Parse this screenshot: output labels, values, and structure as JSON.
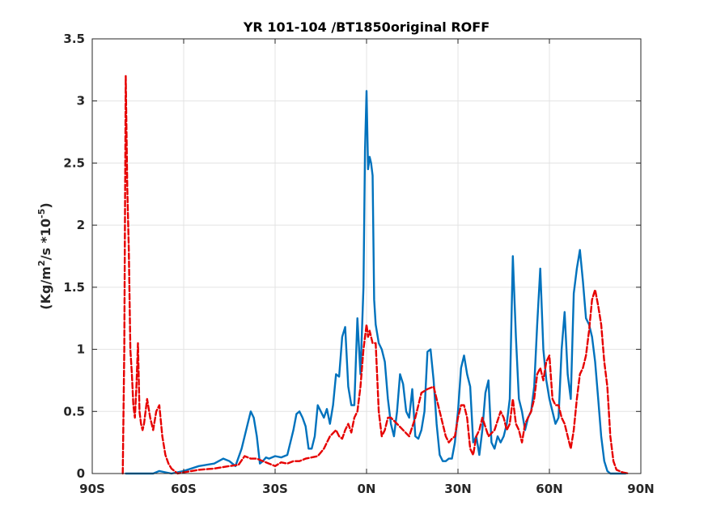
{
  "chart_data": {
    "type": "line",
    "title": "YR 101-104 /BT1850original ROFF",
    "xlabel": "",
    "ylabel_base": "(Kg/m",
    "ylabel_sup1": "2",
    "ylabel_mid": "/s   *10",
    "ylabel_sup2": "-5",
    "ylabel_end": ")",
    "xlim": [
      -90,
      90
    ],
    "ylim": [
      0,
      3.5
    ],
    "grid": true,
    "xticks": [
      {
        "value": -90,
        "label": "90S"
      },
      {
        "value": -60,
        "label": "60S"
      },
      {
        "value": -30,
        "label": "30S"
      },
      {
        "value": 0,
        "label": "0N"
      },
      {
        "value": 30,
        "label": "30N"
      },
      {
        "value": 60,
        "label": "60N"
      },
      {
        "value": 90,
        "label": "90N"
      }
    ],
    "yticks": [
      {
        "value": 0,
        "label": "0"
      },
      {
        "value": 0.5,
        "label": "0.5"
      },
      {
        "value": 1,
        "label": "1"
      },
      {
        "value": 1.5,
        "label": "1.5"
      },
      {
        "value": 2,
        "label": "2"
      },
      {
        "value": 2.5,
        "label": "2.5"
      },
      {
        "value": 3,
        "label": "3"
      },
      {
        "value": 3.5,
        "label": "3.5"
      }
    ],
    "series": [
      {
        "color": "#0072bd",
        "dash": "solid",
        "x": [
          -79,
          -70,
          -68,
          -66,
          -64,
          -60,
          -55,
          -50,
          -47,
          -45,
          -43,
          -41,
          -39,
          -38,
          -37,
          -36,
          -35,
          -34,
          -33,
          -32,
          -30,
          -28,
          -26,
          -24,
          -23,
          -22,
          -21,
          -20,
          -19,
          -18,
          -17,
          -16,
          -15,
          -14,
          -13,
          -12,
          -11,
          -10,
          -9,
          -8,
          -7,
          -6,
          -5,
          -4,
          -3,
          -2,
          -1,
          -0.5,
          0,
          0.5,
          1,
          1.5,
          2,
          2.5,
          3,
          4,
          5,
          6,
          7,
          8,
          9,
          10,
          11,
          12,
          13,
          14,
          15,
          16,
          17,
          18,
          19,
          20,
          21,
          22,
          23,
          24,
          25,
          26,
          27,
          28,
          29,
          30,
          31,
          32,
          33,
          34,
          35,
          36,
          37,
          38,
          39,
          40,
          41,
          42,
          43,
          44,
          45,
          46,
          47,
          48,
          49,
          50,
          51,
          52,
          53,
          54,
          55,
          56,
          57,
          58,
          59,
          60,
          61,
          62,
          63,
          64,
          65,
          66,
          67,
          68,
          69,
          70,
          71,
          72,
          73,
          74,
          75,
          76,
          77,
          78,
          79,
          80,
          82,
          85
        ],
        "y": [
          0,
          0,
          0.02,
          0.01,
          0,
          0.02,
          0.06,
          0.08,
          0.12,
          0.1,
          0.06,
          0.2,
          0.4,
          0.5,
          0.45,
          0.3,
          0.08,
          0.1,
          0.13,
          0.12,
          0.14,
          0.13,
          0.15,
          0.35,
          0.48,
          0.5,
          0.45,
          0.38,
          0.2,
          0.2,
          0.3,
          0.55,
          0.5,
          0.45,
          0.52,
          0.4,
          0.55,
          0.8,
          0.78,
          1.1,
          1.18,
          0.7,
          0.55,
          0.55,
          1.25,
          0.8,
          1.5,
          2.6,
          3.08,
          2.45,
          2.55,
          2.5,
          2.4,
          1.4,
          1.2,
          1.05,
          1.0,
          0.9,
          0.6,
          0.4,
          0.3,
          0.5,
          0.8,
          0.72,
          0.5,
          0.45,
          0.68,
          0.3,
          0.28,
          0.35,
          0.5,
          0.98,
          1.0,
          0.75,
          0.4,
          0.15,
          0.1,
          0.1,
          0.12,
          0.12,
          0.25,
          0.5,
          0.85,
          0.95,
          0.8,
          0.7,
          0.25,
          0.3,
          0.15,
          0.35,
          0.65,
          0.75,
          0.25,
          0.2,
          0.3,
          0.25,
          0.3,
          0.4,
          0.6,
          1.75,
          1.1,
          0.6,
          0.5,
          0.35,
          0.45,
          0.5,
          0.7,
          1.2,
          1.65,
          1.0,
          0.75,
          0.6,
          0.5,
          0.4,
          0.45,
          1.0,
          1.3,
          0.8,
          0.6,
          1.45,
          1.65,
          1.8,
          1.55,
          1.25,
          1.2,
          1.1,
          0.9,
          0.6,
          0.3,
          0.1,
          0.02,
          0,
          0,
          0
        ]
      },
      {
        "color": "#e60000",
        "dash": "dashed",
        "x": [
          -80,
          -79.5,
          -79,
          -78.5,
          -78,
          -77.5,
          -77,
          -76.5,
          -76,
          -75.5,
          -75,
          -74.5,
          -74,
          -73.5,
          -73,
          -72,
          -71,
          -70,
          -69,
          -68,
          -67,
          -66,
          -65,
          -64,
          -63,
          -62,
          -60,
          -55,
          -50,
          -45,
          -42,
          -40,
          -38,
          -36,
          -34,
          -32,
          -30,
          -28,
          -26,
          -24,
          -22,
          -20,
          -18,
          -16,
          -14,
          -12,
          -10,
          -9,
          -8,
          -7,
          -6,
          -5,
          -4,
          -3,
          -2,
          -1,
          0,
          0.5,
          1,
          2,
          3,
          4,
          5,
          6,
          7,
          8,
          10,
          12,
          14,
          16,
          18,
          20,
          22,
          24,
          26,
          27,
          28,
          29,
          30,
          31,
          32,
          33,
          34,
          35,
          36,
          37,
          38,
          40,
          42,
          44,
          45,
          46,
          47,
          48,
          49,
          50,
          51,
          52,
          53,
          54,
          55,
          56,
          57,
          58,
          59,
          60,
          61,
          62,
          63,
          64,
          65,
          66,
          67,
          68,
          69,
          70,
          71,
          72,
          73,
          74,
          75,
          76,
          77,
          78,
          79,
          80,
          81,
          82,
          84,
          86
        ],
        "y": [
          0,
          1.0,
          3.2,
          2.3,
          1.8,
          1.0,
          0.8,
          0.55,
          0.45,
          0.7,
          1.05,
          0.5,
          0.4,
          0.35,
          0.4,
          0.6,
          0.45,
          0.35,
          0.5,
          0.55,
          0.3,
          0.15,
          0.08,
          0.04,
          0.02,
          0,
          0.01,
          0.03,
          0.04,
          0.06,
          0.07,
          0.14,
          0.12,
          0.12,
          0.1,
          0.08,
          0.06,
          0.09,
          0.08,
          0.1,
          0.1,
          0.12,
          0.13,
          0.14,
          0.2,
          0.3,
          0.35,
          0.3,
          0.28,
          0.35,
          0.4,
          0.33,
          0.45,
          0.5,
          0.7,
          1.0,
          1.2,
          1.1,
          1.15,
          1.05,
          1.05,
          0.5,
          0.3,
          0.35,
          0.45,
          0.45,
          0.4,
          0.35,
          0.3,
          0.45,
          0.65,
          0.68,
          0.7,
          0.5,
          0.3,
          0.25,
          0.28,
          0.3,
          0.45,
          0.55,
          0.55,
          0.45,
          0.2,
          0.15,
          0.3,
          0.35,
          0.45,
          0.3,
          0.35,
          0.5,
          0.45,
          0.35,
          0.4,
          0.6,
          0.4,
          0.35,
          0.25,
          0.4,
          0.45,
          0.5,
          0.6,
          0.8,
          0.85,
          0.75,
          0.9,
          0.95,
          0.6,
          0.55,
          0.55,
          0.45,
          0.4,
          0.3,
          0.2,
          0.35,
          0.6,
          0.8,
          0.85,
          0.95,
          1.15,
          1.4,
          1.48,
          1.35,
          1.2,
          0.9,
          0.7,
          0.3,
          0.1,
          0.03,
          0.01,
          0
        ]
      }
    ]
  }
}
